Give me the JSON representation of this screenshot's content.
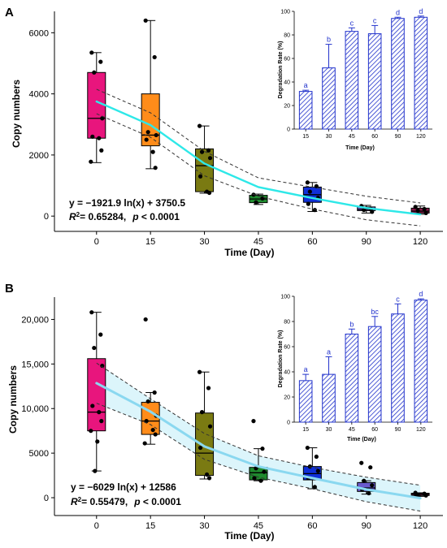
{
  "colors": {
    "box_fills": [
      "#e8157d",
      "#ff8c1a",
      "#7a7a12",
      "#1f8a2e",
      "#1030d8",
      "#6a5acd",
      "#8b1a4a"
    ],
    "fit_A": "#2ee8e8",
    "fit_B": "#8ad8f0",
    "ci_band_B": "#d6f3fa",
    "inset_bar": "#2233cc",
    "inset_letter": "#2233cc"
  },
  "icons": {
    "inset_bar_fill": "diagonal-hatch"
  },
  "chart_data": [
    {
      "type": "box",
      "panel": "A",
      "xlabel": "Time (Day)",
      "ylabel": "Copy numbers",
      "categories": [
        "0",
        "15",
        "30",
        "45",
        "60",
        "90",
        "120"
      ],
      "x": [
        0,
        15,
        30,
        45,
        60,
        90,
        120
      ],
      "ylim": [
        -500,
        6700
      ],
      "yticks": [
        0,
        2000,
        4000,
        6000
      ],
      "ytick_labels": [
        "0",
        "2000",
        "4000",
        "6000"
      ],
      "boxes": [
        {
          "min": 1750,
          "q1": 2550,
          "median": 3200,
          "q3": 4700,
          "max": 5350,
          "points": [
            5350,
            5050,
            4700,
            3200,
            2600,
            2550,
            2150,
            1780
          ]
        },
        {
          "min": 1550,
          "q1": 2300,
          "median": 2650,
          "q3": 4000,
          "max": 6400,
          "points": [
            6400,
            5200,
            2750,
            2650,
            2500,
            2100,
            1580
          ]
        },
        {
          "min": 750,
          "q1": 800,
          "median": 1650,
          "q3": 2200,
          "max": 2950,
          "points": [
            2950,
            2150,
            2100,
            1900,
            1300,
            800,
            760
          ]
        },
        {
          "min": 380,
          "q1": 440,
          "median": 560,
          "q3": 680,
          "max": 720,
          "points": [
            700,
            580,
            450
          ]
        },
        {
          "min": 150,
          "q1": 450,
          "median": 700,
          "q3": 950,
          "max": 1100,
          "points": [
            1100,
            980,
            800,
            600,
            400,
            200
          ]
        },
        {
          "min": 100,
          "q1": 180,
          "median": 220,
          "q3": 300,
          "max": 350,
          "points": [
            330,
            250,
            200,
            140
          ]
        },
        {
          "min": 60,
          "q1": 100,
          "median": 160,
          "q3": 260,
          "max": 330,
          "points": [
            300,
            230,
            180,
            100
          ]
        }
      ],
      "fit": {
        "a": -1921.9,
        "b": 3750.5
      },
      "ci": [
        {
          "x": 0,
          "lo": 3350,
          "hi": 4150
        },
        {
          "x": 15,
          "lo": 2580,
          "hi": 3380
        },
        {
          "x": 30,
          "lo": 1320,
          "hi": 2120
        },
        {
          "x": 45,
          "lo": 650,
          "hi": 1250
        },
        {
          "x": 60,
          "lo": 230,
          "hi": 950
        },
        {
          "x": 90,
          "lo": -120,
          "hi": 650
        },
        {
          "x": 120,
          "lo": -320,
          "hi": 430
        }
      ],
      "equation": "y = −1921.9 ln(x) + 3750.5",
      "r2_prefix": "R",
      "r2_sup": "2",
      "r2_value": "= 0.65284,",
      "p_label": "p",
      "p_value": " < 0.0001",
      "inset": {
        "type": "bar",
        "xlabel": "Time (Day)",
        "ylabel": "Degradation Rate (%)",
        "categories": [
          "15",
          "30",
          "45",
          "60",
          "90",
          "120"
        ],
        "values": [
          32,
          52,
          83,
          81,
          94,
          95
        ],
        "errors": [
          1,
          20,
          3,
          7,
          1,
          1
        ],
        "letters": [
          "a",
          "b",
          "c",
          "c",
          "d",
          "d"
        ],
        "ylim": [
          0,
          100
        ],
        "yticks": [
          0,
          20,
          40,
          60,
          80,
          100
        ]
      }
    },
    {
      "type": "box",
      "panel": "B",
      "xlabel": "Time (Day)",
      "ylabel": "Copy numbers",
      "categories": [
        "0",
        "15",
        "30",
        "45",
        "60",
        "90",
        "120"
      ],
      "x": [
        0,
        15,
        30,
        45,
        60,
        90,
        120
      ],
      "ylim": [
        -2000,
        22500
      ],
      "yticks": [
        0,
        5000,
        10000,
        15000,
        20000
      ],
      "ytick_labels": [
        "0",
        "5000",
        "10,000",
        "15,000",
        "20,000"
      ],
      "boxes": [
        {
          "min": 3000,
          "q1": 7500,
          "median": 9600,
          "q3": 15600,
          "max": 20800,
          "points": [
            20800,
            18300,
            16800,
            14800,
            10300,
            9600,
            8600,
            7500,
            6300,
            3000
          ]
        },
        {
          "min": 6000,
          "q1": 7100,
          "median": 8600,
          "q3": 10700,
          "max": 11800,
          "points": [
            20000,
            11800,
            10800,
            9200,
            8600,
            7600,
            7100,
            6100
          ]
        },
        {
          "min": 2100,
          "q1": 2500,
          "median": 5000,
          "q3": 9500,
          "max": 14100,
          "points": [
            14100,
            12300,
            9600,
            8000,
            5600,
            2600,
            2200
          ]
        },
        {
          "min": 1900,
          "q1": 2000,
          "median": 2800,
          "q3": 3400,
          "max": 5500,
          "points": [
            8600,
            5500,
            3300,
            2900,
            2200,
            1900
          ]
        },
        {
          "min": 1000,
          "q1": 2000,
          "median": 2700,
          "q3": 3500,
          "max": 5600,
          "points": [
            5600,
            4600,
            3500,
            3000,
            2200,
            1200
          ]
        },
        {
          "min": 400,
          "q1": 700,
          "median": 1100,
          "q3": 1700,
          "max": 1900,
          "points": [
            3900,
            3400,
            1900,
            1400,
            900,
            500
          ]
        },
        {
          "min": 150,
          "q1": 250,
          "median": 380,
          "q3": 500,
          "max": 550,
          "points": [
            550,
            450,
            350,
            250,
            200
          ]
        }
      ],
      "fit": {
        "a": -6029,
        "b": 12586
      },
      "ci": [
        {
          "x": 0,
          "lo": 10600,
          "hi": 15100
        },
        {
          "x": 15,
          "lo": 8200,
          "hi": 11100
        },
        {
          "x": 30,
          "lo": 4300,
          "hi": 7200
        },
        {
          "x": 45,
          "lo": 2300,
          "hi": 4700
        },
        {
          "x": 60,
          "lo": 1000,
          "hi": 3400
        },
        {
          "x": 90,
          "lo": -450,
          "hi": 2300
        },
        {
          "x": 120,
          "lo": -1500,
          "hi": 1400
        }
      ],
      "equation": "y = −6029 ln(x) + 12586",
      "r2_prefix": "R",
      "r2_sup": "2",
      "r2_value": "= 0.55479,",
      "p_label": "p",
      "p_value": " < 0.0001",
      "inset": {
        "type": "bar",
        "xlabel": "Time (Day)",
        "ylabel": "Degradation Rate (%)",
        "categories": [
          "15",
          "30",
          "45",
          "60",
          "90",
          "120"
        ],
        "values": [
          33,
          38,
          70,
          76,
          86,
          97
        ],
        "errors": [
          5,
          14,
          4,
          8,
          8,
          1
        ],
        "letters": [
          "a",
          "a",
          "b",
          "bc",
          "c",
          "d"
        ],
        "ylim": [
          0,
          100
        ],
        "yticks": [
          0,
          20,
          40,
          60,
          80,
          100
        ]
      }
    }
  ]
}
